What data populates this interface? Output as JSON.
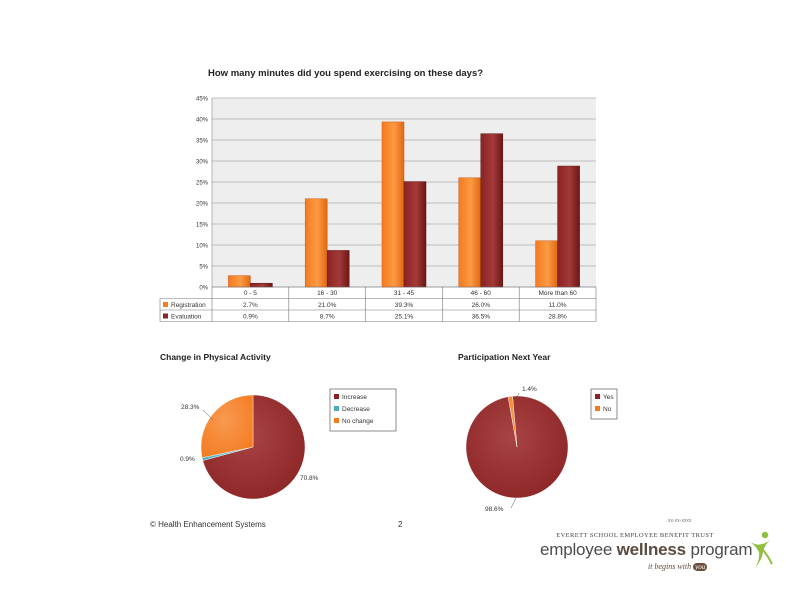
{
  "chart_data": [
    {
      "type": "bar",
      "title": "How many minutes did you spend exercising on these days?",
      "categories": [
        "0 - 5",
        "16 - 30",
        "31 - 45",
        "46 - 60",
        "More than 60"
      ],
      "series": [
        {
          "name": "Registration",
          "values": [
            2.7,
            21.0,
            39.3,
            26.0,
            11.0
          ],
          "labels": [
            "2.7%",
            "21.0%",
            "39.3%",
            "26.0%",
            "11.0%"
          ],
          "color": "#f47b20"
        },
        {
          "name": "Evaluation",
          "values": [
            0.9,
            8.7,
            25.1,
            36.5,
            28.8
          ],
          "labels": [
            "0.9%",
            "8.7%",
            "25.1%",
            "36.5%",
            "28.8%"
          ],
          "color": "#8b2323"
        }
      ],
      "ylim": [
        0,
        45
      ],
      "yticks": [
        "0%",
        "5%",
        "10%",
        "15%",
        "20%",
        "25%",
        "30%",
        "35%",
        "40%",
        "45%"
      ],
      "grid": true,
      "data_table": true
    },
    {
      "type": "pie",
      "title": "Change in Physical Activity",
      "slices": [
        {
          "name": "Increase",
          "value": 70.8,
          "label": "70.8%",
          "color": "#8b2323"
        },
        {
          "name": "Decrease",
          "value": 0.9,
          "label": "0.9%",
          "color": "#4bacc6"
        },
        {
          "name": "No change",
          "value": 28.3,
          "label": "28.3%",
          "color": "#f47b20"
        }
      ],
      "legend": "right"
    },
    {
      "type": "pie",
      "title": "Participation Next Year",
      "slices": [
        {
          "name": "Yes",
          "value": 98.6,
          "label": "98.6%",
          "color": "#8b2323"
        },
        {
          "name": "No",
          "value": 1.4,
          "label": "1.4%",
          "color": "#f47b20"
        }
      ],
      "legend": "right"
    }
  ],
  "footer": {
    "copyright": "© Health Enhancement Systems",
    "page_number": "2",
    "note": "xx-xx-xxxx"
  },
  "logo": {
    "trust": "EVERETT SCHOOL EMPLOYEE BENEFIT TRUST",
    "name_part1": "employee ",
    "name_part2": "wellness",
    "name_part3": " program",
    "tagline": "it begins with ",
    "tagline_you": "you"
  }
}
